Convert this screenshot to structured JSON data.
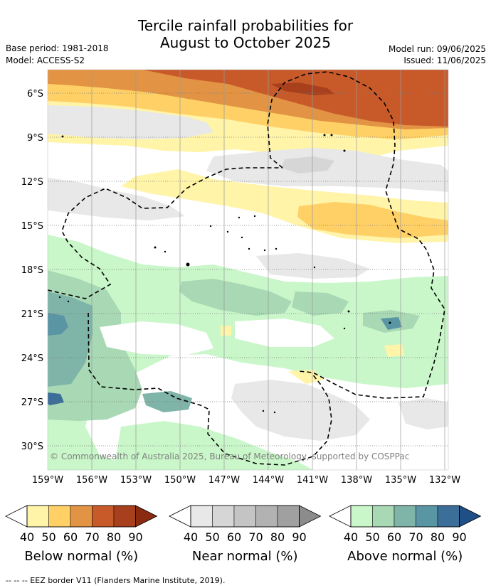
{
  "title": {
    "line1": "Tercile rainfall probabilities for",
    "line2": "August to October 2025"
  },
  "meta": {
    "base_period": "Base period: 1981-2018",
    "model": "Model: ACCESS-S2",
    "model_run": "Model run: 09/06/2025",
    "issued": "Issued: 11/06/2025"
  },
  "map": {
    "copyright": "© Commonwealth of Australia 2025, Bureau of Meteorology, supported by COSPPac",
    "lat_labels": [
      "6°S",
      "9°S",
      "12°S",
      "15°S",
      "18°S",
      "21°S",
      "24°S",
      "27°S",
      "30°S"
    ],
    "lon_labels": [
      "159°W",
      "156°W",
      "153°W",
      "150°W",
      "147°W",
      "144°W",
      "141°W",
      "138°W",
      "135°W",
      "132°W"
    ]
  },
  "colorbars": [
    {
      "label": "Below normal (%)",
      "colors": [
        "#fff4a8",
        "#ffd066",
        "#e29444",
        "#c85a2a",
        "#a8401e",
        "#8a2a10"
      ],
      "ticks": [
        "40",
        "50",
        "60",
        "70",
        "80",
        "90"
      ]
    },
    {
      "label": "Near normal (%)",
      "colors": [
        "#e8e8e8",
        "#d6d6d6",
        "#c4c4c4",
        "#b2b2b2",
        "#a0a0a0",
        "#8c8c8c"
      ],
      "ticks": [
        "40",
        "50",
        "60",
        "70",
        "80",
        "90"
      ]
    },
    {
      "label": "Above normal (%)",
      "colors": [
        "#c9f7c9",
        "#a8d8b4",
        "#7fb4a8",
        "#5a95a4",
        "#3c6e9a",
        "#1e4f86"
      ],
      "ticks": [
        "40",
        "50",
        "60",
        "70",
        "80",
        "90"
      ]
    }
  ],
  "footer": {
    "eez_note": "--  --  -- EEZ border V11 (Flanders Marine Institute, 2019)."
  }
}
